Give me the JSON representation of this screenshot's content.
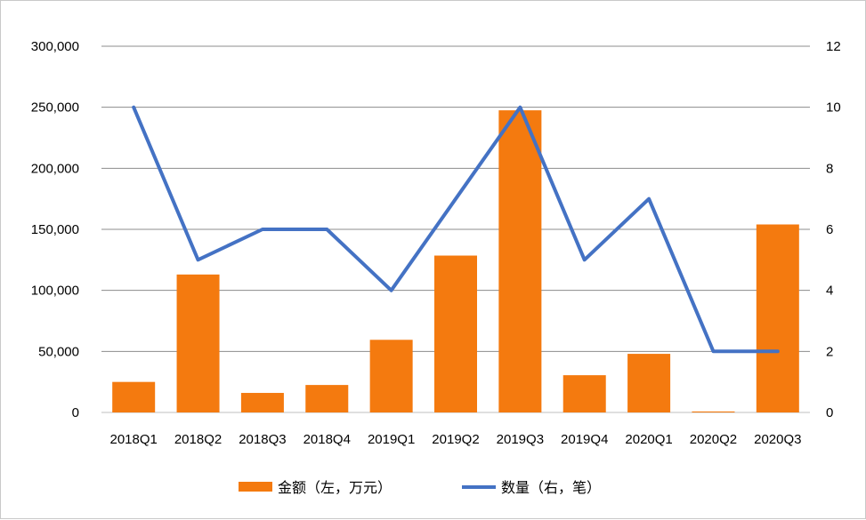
{
  "chart_data": {
    "type": "bar+line",
    "categories": [
      "2018Q1",
      "2018Q2",
      "2018Q3",
      "2018Q4",
      "2019Q1",
      "2019Q2",
      "2019Q3",
      "2019Q4",
      "2020Q1",
      "2020Q2",
      "2020Q3"
    ],
    "series": [
      {
        "name": "金额（左，万元）",
        "type": "bar",
        "axis": "left",
        "color": "#F47A0F",
        "values": [
          25000,
          113000,
          16000,
          22500,
          59500,
          128500,
          247500,
          30500,
          48000,
          800,
          154000
        ]
      },
      {
        "name": "数量（右，笔）",
        "type": "line",
        "axis": "right",
        "color": "#4472C4",
        "values": [
          10,
          5,
          6,
          6,
          4,
          7,
          10,
          5,
          7,
          2,
          2
        ]
      }
    ],
    "y_left": {
      "ylim": [
        0,
        300000
      ],
      "ticks": [
        "0",
        "50,000",
        "100,000",
        "150,000",
        "200,000",
        "250,000",
        "300,000"
      ]
    },
    "y_right": {
      "ylim": [
        0,
        12
      ],
      "ticks": [
        "0",
        "2",
        "4",
        "6",
        "8",
        "10",
        "12"
      ]
    },
    "grid": true,
    "legend_position": "bottom"
  }
}
